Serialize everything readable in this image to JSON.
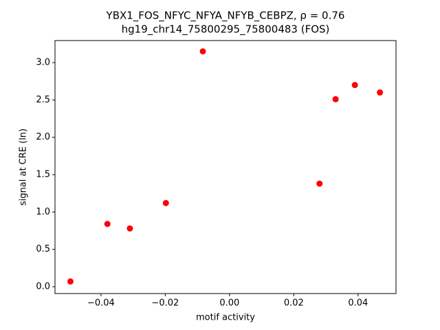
{
  "chart_data": {
    "type": "scatter",
    "title": "YBX1_FOS_NFYC_NFYA_NFYB_CEBPZ, ρ = 0.76",
    "subtitle": "hg19_chr14_75800295_75800483 (FOS)",
    "x_label": "motif activity",
    "y_label": "signal at CRE (ln)",
    "color": "#ff0000",
    "x": [
      -0.0495,
      -0.038,
      -0.031,
      -0.0198,
      -0.0083,
      0.028,
      0.033,
      0.039,
      0.0468
    ],
    "values": [
      0.07,
      0.84,
      0.78,
      1.12,
      3.15,
      1.38,
      2.51,
      2.7,
      2.6
    ],
    "xlim": [
      -0.0543,
      0.0518
    ],
    "ylim": [
      -0.092,
      3.295
    ],
    "xticks": [
      {
        "value": -0.04,
        "label": "−0.04"
      },
      {
        "value": -0.02,
        "label": "−0.02"
      },
      {
        "value": 0,
        "label": "0.00"
      },
      {
        "value": 0.02,
        "label": "0.02"
      },
      {
        "value": 0.04,
        "label": "0.04"
      }
    ],
    "yticks": [
      {
        "value": 0,
        "label": "0.0"
      },
      0.5,
      {
        "value": 1,
        "label": "1.0"
      },
      1.5,
      {
        "value": 2,
        "label": "2.0"
      },
      2.5,
      {
        "value": 3,
        "label": "3.0"
      }
    ],
    "grid": false
  }
}
